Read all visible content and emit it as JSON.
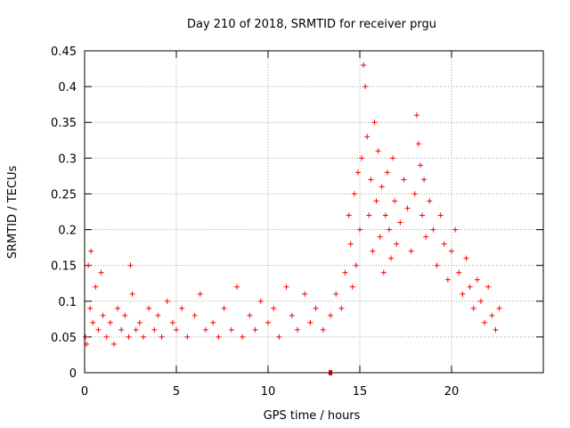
{
  "chart_data": {
    "type": "scatter",
    "title": "Day 210 of 2018, SRMTID for receiver prgu",
    "xlabel": "GPS time / hours",
    "ylabel": "SRMTID / TECUs",
    "xlim": [
      0,
      25
    ],
    "ylim": [
      0,
      0.45
    ],
    "xticks": [
      0,
      5,
      10,
      15,
      20
    ],
    "xtick_labels": [
      "0",
      "5",
      "10",
      "15",
      "20"
    ],
    "yticks": [
      0,
      0.05,
      0.1,
      0.15,
      0.2,
      0.25,
      0.3,
      0.35,
      0.4,
      0.45
    ],
    "ytick_labels": [
      "0",
      "0.05",
      "0.1",
      "0.15",
      "0.2",
      "0.25",
      "0.3",
      "0.35",
      "0.4",
      "0.45"
    ],
    "grid": true,
    "marker": "+",
    "color": "#ff0000",
    "series": [
      {
        "name": "SRMTID",
        "x": [
          0.05,
          0.1,
          0.2,
          0.3,
          0.35,
          0.45,
          0.6,
          0.75,
          0.9,
          1.0,
          1.2,
          1.4,
          1.6,
          1.8,
          2.0,
          2.2,
          2.4,
          2.5,
          2.6,
          2.8,
          3.0,
          3.2,
          3.5,
          3.8,
          4.0,
          4.2,
          4.5,
          4.8,
          5.0,
          5.3,
          5.6,
          6.0,
          6.3,
          6.6,
          7.0,
          7.3,
          7.6,
          8.0,
          8.3,
          8.6,
          9.0,
          9.3,
          9.6,
          10.0,
          10.3,
          10.6,
          11.0,
          11.3,
          11.6,
          12.0,
          12.3,
          12.6,
          13.0,
          13.4,
          13.7,
          14.0,
          14.2,
          14.4,
          14.5,
          14.6,
          14.7,
          14.8,
          14.9,
          15.0,
          15.1,
          15.2,
          15.3,
          15.4,
          15.5,
          15.6,
          15.7,
          15.8,
          15.9,
          16.0,
          16.1,
          16.2,
          16.3,
          16.4,
          16.5,
          16.6,
          16.7,
          16.8,
          16.9,
          17.0,
          17.2,
          17.4,
          17.6,
          17.8,
          18.0,
          18.1,
          18.2,
          18.3,
          18.4,
          18.5,
          18.6,
          18.8,
          19.0,
          19.2,
          19.4,
          19.6,
          19.8,
          20.0,
          20.2,
          20.4,
          20.6,
          20.8,
          21.0,
          21.2,
          21.4,
          21.6,
          21.8,
          22.0,
          22.2,
          22.4,
          22.6
        ],
        "y": [
          0.05,
          0.04,
          0.15,
          0.09,
          0.17,
          0.07,
          0.12,
          0.06,
          0.14,
          0.08,
          0.05,
          0.07,
          0.04,
          0.09,
          0.06,
          0.08,
          0.05,
          0.15,
          0.11,
          0.06,
          0.07,
          0.05,
          0.09,
          0.06,
          0.08,
          0.05,
          0.1,
          0.07,
          0.06,
          0.09,
          0.05,
          0.08,
          0.11,
          0.06,
          0.07,
          0.05,
          0.09,
          0.06,
          0.12,
          0.05,
          0.08,
          0.06,
          0.1,
          0.07,
          0.09,
          0.05,
          0.12,
          0.08,
          0.06,
          0.11,
          0.07,
          0.09,
          0.06,
          0.08,
          0.11,
          0.09,
          0.14,
          0.22,
          0.18,
          0.12,
          0.25,
          0.15,
          0.28,
          0.2,
          0.3,
          0.43,
          0.4,
          0.33,
          0.22,
          0.27,
          0.17,
          0.35,
          0.24,
          0.31,
          0.19,
          0.26,
          0.14,
          0.22,
          0.28,
          0.2,
          0.16,
          0.3,
          0.24,
          0.18,
          0.21,
          0.27,
          0.23,
          0.17,
          0.25,
          0.36,
          0.32,
          0.29,
          0.22,
          0.27,
          0.19,
          0.24,
          0.2,
          0.15,
          0.22,
          0.18,
          0.13,
          0.17,
          0.2,
          0.14,
          0.11,
          0.16,
          0.12,
          0.09,
          0.13,
          0.1,
          0.07,
          0.12,
          0.08,
          0.06,
          0.09
        ]
      }
    ],
    "marked_point": {
      "x": 13.4,
      "y": 0
    }
  }
}
